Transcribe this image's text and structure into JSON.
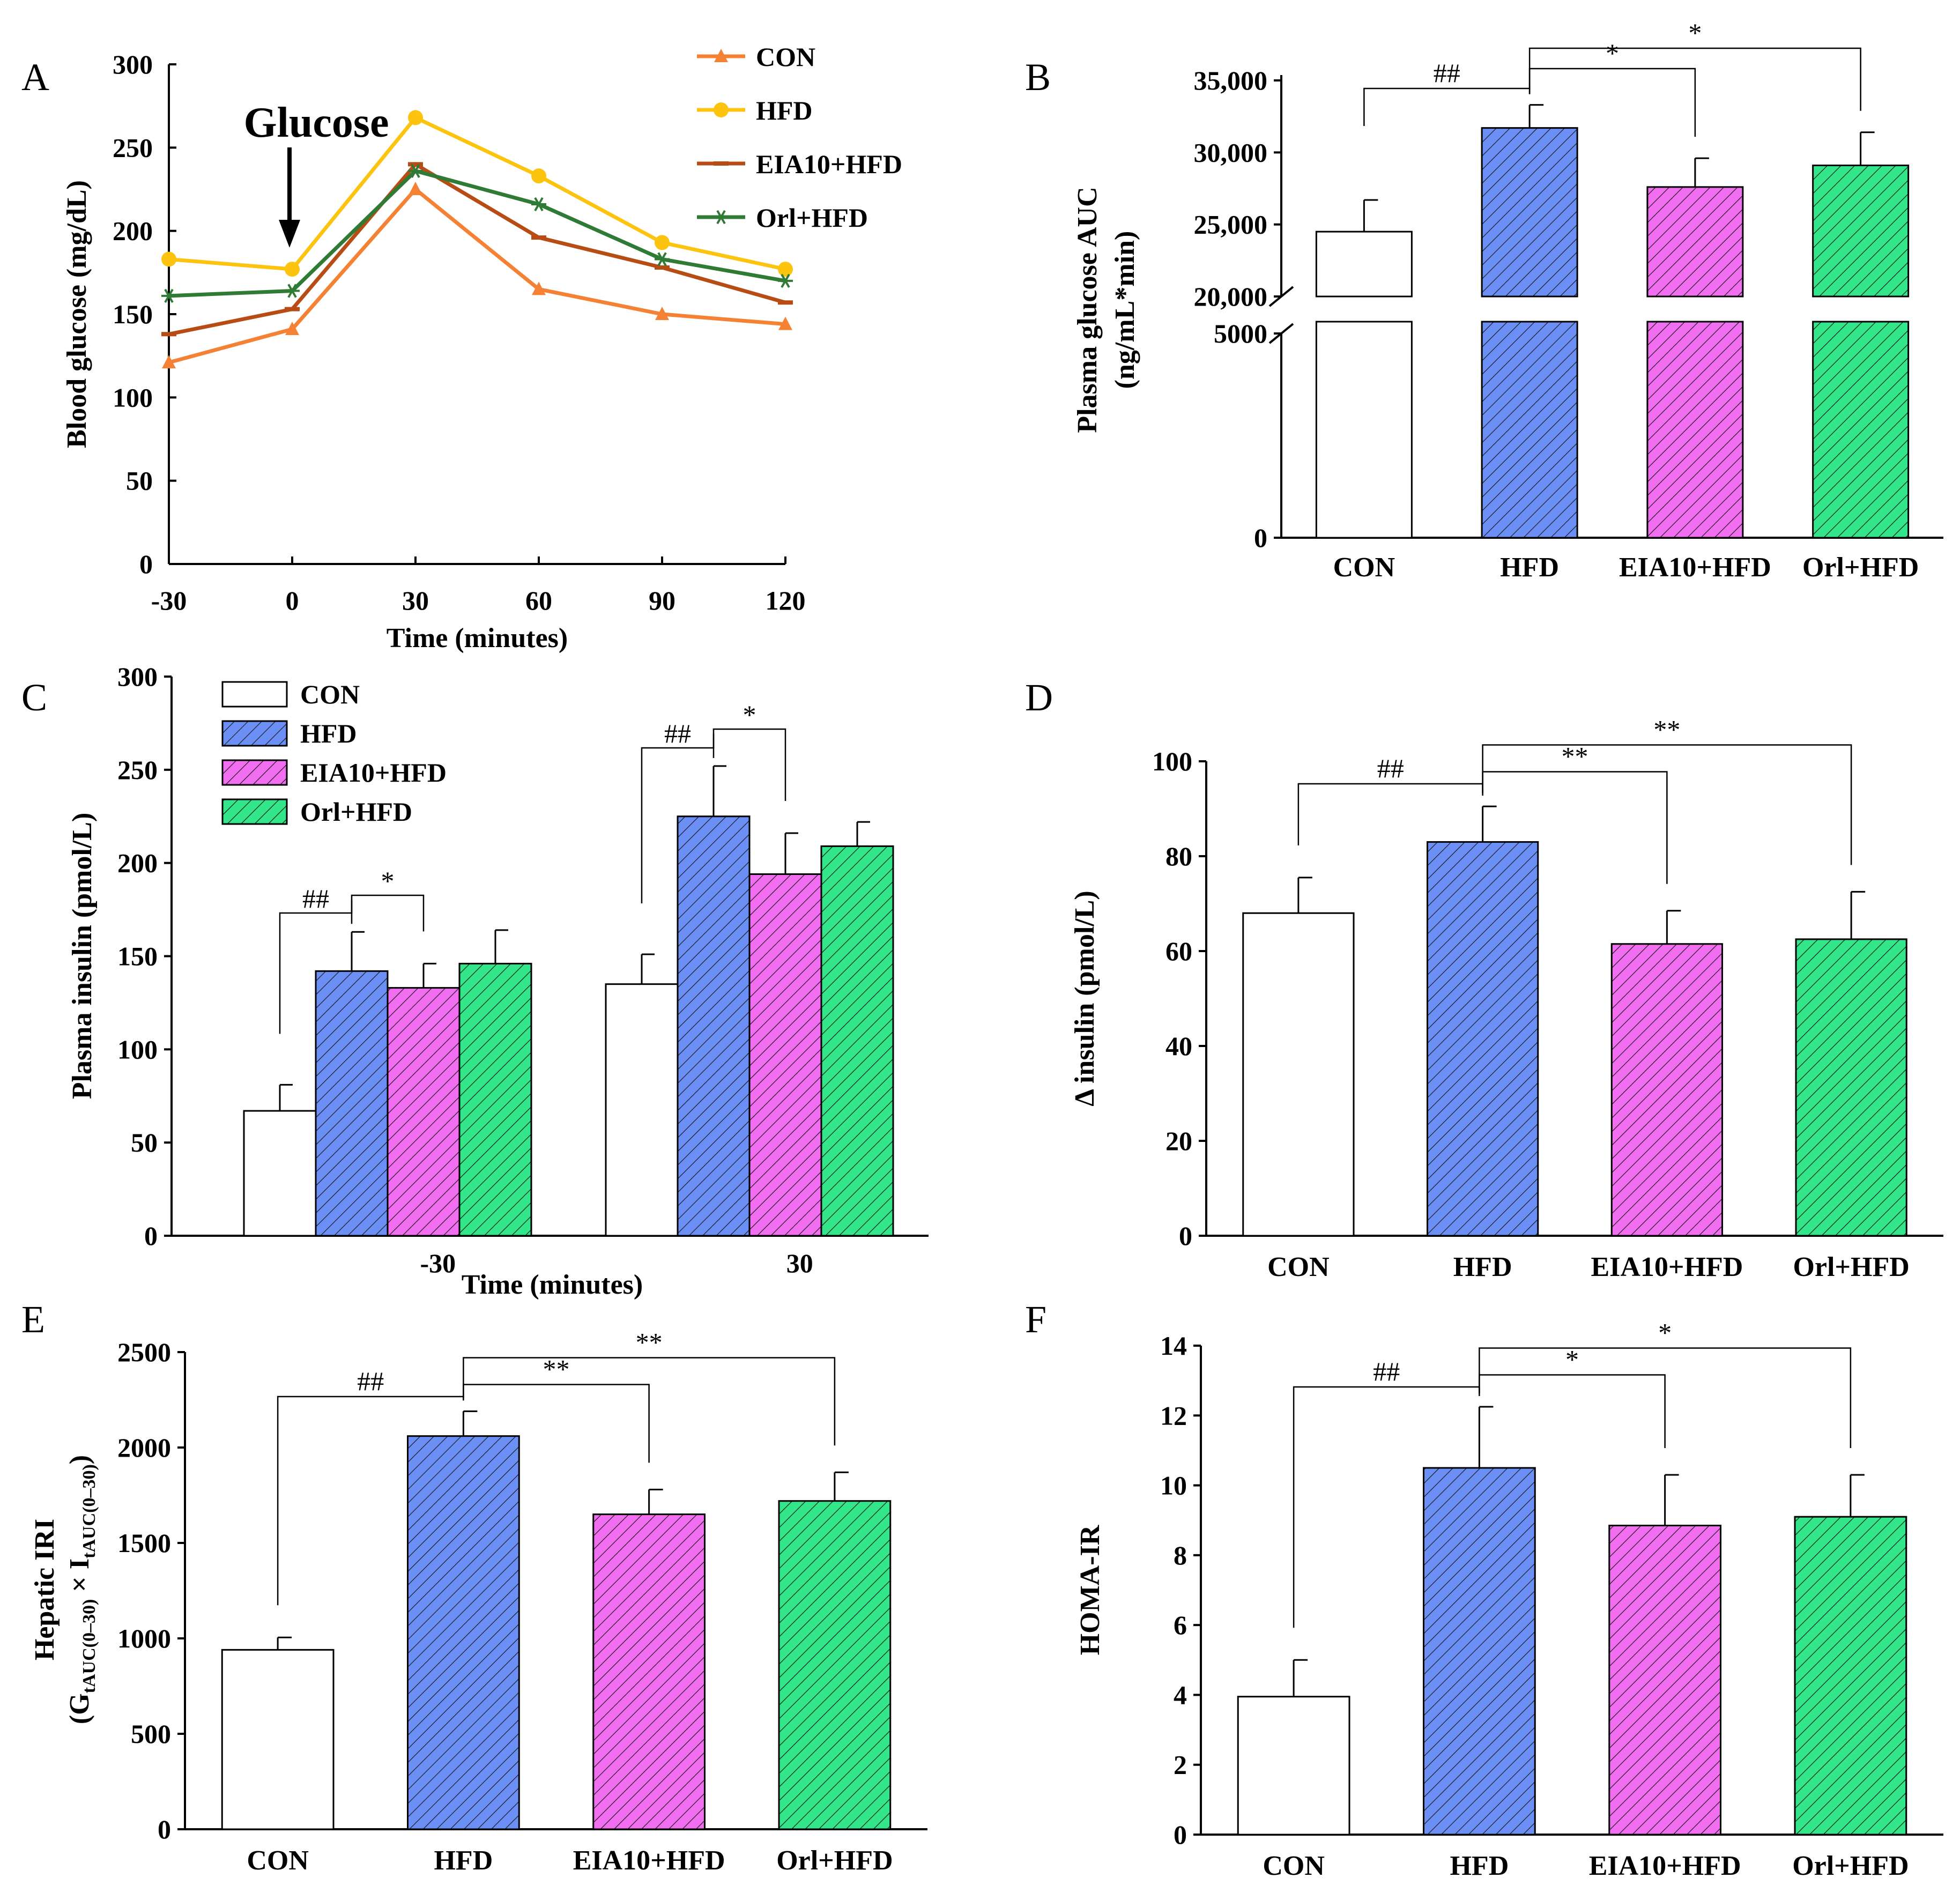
{
  "colors": {
    "CON": "#ffffff",
    "HFD": "#6b8ff5",
    "EIA10+HFD": "#f26ef0",
    "Orl+HFD": "#33e68a",
    "line_CON": "#f58134",
    "line_HFD": "#fcc30f",
    "line_EIA10": "#b84c15",
    "line_Orl": "#2f7a34"
  },
  "chart_data": [
    {
      "panel": "A",
      "type": "line",
      "xlabel": "Time (minutes)",
      "ylabel": "Blood glucose (mg/dL)",
      "x": [
        -30,
        0,
        30,
        60,
        90,
        120
      ],
      "x_ticks": [
        "-30",
        "0",
        "30",
        "60",
        "90",
        "120"
      ],
      "y_ticks": [
        "0",
        "50",
        "100",
        "150",
        "200",
        "250",
        "300"
      ],
      "ylim": [
        0,
        300
      ],
      "annotation": "Glucose",
      "series": [
        {
          "name": "CON",
          "values": [
            121,
            141,
            225,
            165,
            150,
            144
          ],
          "marker": "triangle"
        },
        {
          "name": "HFD",
          "values": [
            183,
            177,
            268,
            233,
            193,
            177
          ],
          "marker": "circle"
        },
        {
          "name": "EIA10+HFD",
          "values": [
            138,
            153,
            240,
            196,
            178,
            157
          ],
          "marker": "dash"
        },
        {
          "name": "Orl+HFD",
          "values": [
            161,
            164,
            236,
            216,
            183,
            170
          ],
          "marker": "star"
        }
      ]
    },
    {
      "panel": "B",
      "type": "bar",
      "ylabel": "Plasma glucose AUC",
      "ylabel2": "(ng/mL*min)",
      "categories": [
        "CON",
        "HFD",
        "EIA10+HFD",
        "Orl+HFD"
      ],
      "values": [
        24500,
        31700,
        27600,
        29100
      ],
      "errors": [
        2200,
        1600,
        2000,
        2300
      ],
      "y_ticks_upper": [
        "20,000",
        "25,000",
        "30,000",
        "35,000"
      ],
      "y_ticks_lower": [
        "0",
        "5000"
      ],
      "significance": [
        {
          "from": 0,
          "to": 1,
          "label": "##"
        },
        {
          "from": 1,
          "to": 2,
          "label": "*"
        },
        {
          "from": 1,
          "to": 3,
          "label": "*"
        }
      ]
    },
    {
      "panel": "C",
      "type": "bar",
      "xlabel": "Time (minutes)",
      "ylabel": "Plasma insulin (pmol/L)",
      "groups": [
        "-30",
        "30"
      ],
      "legend": [
        "CON",
        "HFD",
        "EIA10+HFD",
        "Orl+HFD"
      ],
      "series": [
        {
          "name": "CON",
          "values": [
            67,
            135
          ],
          "errors": [
            14,
            16
          ]
        },
        {
          "name": "HFD",
          "values": [
            142,
            225
          ],
          "errors": [
            21,
            27
          ]
        },
        {
          "name": "EIA10+HFD",
          "values": [
            133,
            194
          ],
          "errors": [
            13,
            22
          ]
        },
        {
          "name": "Orl+HFD",
          "values": [
            146,
            209
          ],
          "errors": [
            18,
            13
          ]
        }
      ],
      "y_ticks": [
        "0",
        "50",
        "100",
        "150",
        "200",
        "250",
        "300"
      ],
      "ylim": [
        0,
        300
      ],
      "significance": [
        {
          "group": 0,
          "from": 0,
          "to": 1,
          "label": "##"
        },
        {
          "group": 0,
          "from": 1,
          "to": 2,
          "label": "*"
        },
        {
          "group": 1,
          "from": 0,
          "to": 1,
          "label": "##"
        },
        {
          "group": 1,
          "from": 1,
          "to": 2,
          "label": "*"
        }
      ]
    },
    {
      "panel": "D",
      "type": "bar",
      "ylabel": "Δ insulin (pmol/L)",
      "categories": [
        "CON",
        "HFD",
        "EIA10+HFD",
        "Orl+HFD"
      ],
      "values": [
        68,
        83,
        61.5,
        62.5
      ],
      "errors": [
        7.5,
        7.5,
        7,
        10
      ],
      "y_ticks": [
        "0",
        "20",
        "40",
        "60",
        "80",
        "100"
      ],
      "ylim": [
        0,
        100
      ],
      "significance": [
        {
          "from": 0,
          "to": 1,
          "label": "##"
        },
        {
          "from": 1,
          "to": 2,
          "label": "**"
        },
        {
          "from": 1,
          "to": 3,
          "label": "**"
        }
      ]
    },
    {
      "panel": "E",
      "type": "bar",
      "ylabel": "Hepatic IRI",
      "ylabel2_parts": [
        "(G",
        "tAUC(0–30)",
        " × I",
        "tAUC(0–30)",
        ")"
      ],
      "categories": [
        "CON",
        "HFD",
        "EIA10+HFD",
        "Orl+HFD"
      ],
      "values": [
        940,
        2060,
        1650,
        1720
      ],
      "errors": [
        65,
        130,
        130,
        150
      ],
      "y_ticks": [
        "0",
        "500",
        "1000",
        "1500",
        "2000",
        "2500"
      ],
      "ylim": [
        0,
        2500
      ],
      "significance": [
        {
          "from": 0,
          "to": 1,
          "label": "##"
        },
        {
          "from": 1,
          "to": 2,
          "label": "**"
        },
        {
          "from": 1,
          "to": 3,
          "label": "**"
        }
      ]
    },
    {
      "panel": "F",
      "type": "bar",
      "ylabel": "HOMA-IR",
      "categories": [
        "CON",
        "HFD",
        "EIA10+HFD",
        "Orl+HFD"
      ],
      "values": [
        3.95,
        10.5,
        8.85,
        9.1
      ],
      "errors": [
        1.05,
        1.75,
        1.45,
        1.2
      ],
      "y_ticks": [
        "0",
        "2",
        "4",
        "6",
        "8",
        "10",
        "12",
        "14"
      ],
      "ylim": [
        0,
        14
      ],
      "significance": [
        {
          "from": 0,
          "to": 1,
          "label": "##"
        },
        {
          "from": 1,
          "to": 2,
          "label": "*"
        },
        {
          "from": 1,
          "to": 3,
          "label": "*"
        }
      ]
    }
  ]
}
